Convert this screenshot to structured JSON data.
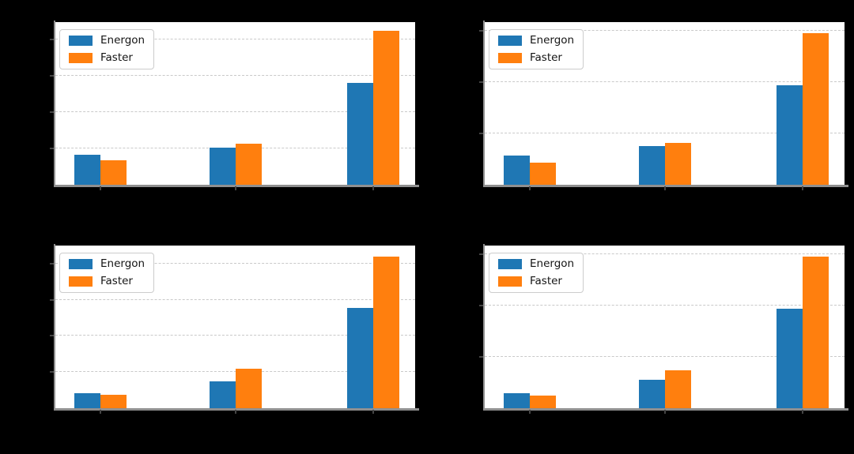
{
  "figure": {
    "background_color": "#000000",
    "plot_background_color": "#ffffff",
    "gridline_color": "#c9c9c9",
    "gridline_style": "dashed-horizontal",
    "spine_color": "#8f8f8f",
    "tick_color": "#454545",
    "accent_colors": {
      "energon_blue": "#1f77b4",
      "faster_orange": "#ff7f0e"
    },
    "legend_labels": [
      "Energon",
      "Faster"
    ]
  },
  "chart_data": [
    {
      "id": "top-left",
      "type": "bar",
      "title": "",
      "xlabel": "",
      "ylabel": "",
      "categories": [
        "",
        "",
        ""
      ],
      "series": [
        {
          "name": "Energon",
          "color": "#1f77b4",
          "values": [
            0.83,
            1.02,
            2.8
          ]
        },
        {
          "name": "Faster",
          "color": "#ff7f0e",
          "values": [
            0.67,
            1.13,
            4.24
          ]
        }
      ],
      "ylim": [
        0,
        4.48
      ],
      "gridlines_y": [
        1,
        2,
        3,
        4
      ],
      "group_centers_pct": [
        12.5,
        50.0,
        88.4
      ],
      "grid": "dashed-horizontal",
      "legend_position": "upper-left"
    },
    {
      "id": "top-right",
      "type": "bar",
      "title": "",
      "xlabel": "",
      "ylabel": "",
      "categories": [
        "",
        "",
        ""
      ],
      "series": [
        {
          "name": "Energon",
          "color": "#1f77b4",
          "values": [
            0.57,
            0.75,
            1.94
          ]
        },
        {
          "name": "Faster",
          "color": "#ff7f0e",
          "values": [
            0.43,
            0.82,
            2.95
          ]
        }
      ],
      "ylim": [
        0,
        3.17
      ],
      "gridlines_y": [
        1,
        2,
        3
      ],
      "group_centers_pct": [
        12.5,
        50.0,
        88.4
      ],
      "grid": "dashed-horizontal",
      "legend_position": "upper-left"
    },
    {
      "id": "bottom-left",
      "type": "bar",
      "title": "",
      "xlabel": "",
      "ylabel": "",
      "categories": [
        "",
        "",
        ""
      ],
      "series": [
        {
          "name": "Energon",
          "color": "#1f77b4",
          "values": [
            0.42,
            0.74,
            2.78
          ]
        },
        {
          "name": "Faster",
          "color": "#ff7f0e",
          "values": [
            0.37,
            1.09,
            4.2
          ]
        }
      ],
      "ylim": [
        0,
        4.5
      ],
      "gridlines_y": [
        1,
        2,
        3,
        4
      ],
      "group_centers_pct": [
        12.5,
        50.0,
        88.4
      ],
      "grid": "dashed-horizontal",
      "legend_position": "upper-left"
    },
    {
      "id": "bottom-right",
      "type": "bar",
      "title": "",
      "xlabel": "",
      "ylabel": "",
      "categories": [
        "",
        "",
        ""
      ],
      "series": [
        {
          "name": "Energon",
          "color": "#1f77b4",
          "values": [
            0.3,
            0.55,
            1.94
          ]
        },
        {
          "name": "Faster",
          "color": "#ff7f0e",
          "values": [
            0.25,
            0.74,
            2.95
          ]
        }
      ],
      "ylim": [
        0,
        3.17
      ],
      "gridlines_y": [
        1,
        2,
        3
      ],
      "group_centers_pct": [
        12.5,
        50.0,
        88.4
      ],
      "grid": "dashed-horizontal",
      "legend_position": "upper-left"
    }
  ]
}
